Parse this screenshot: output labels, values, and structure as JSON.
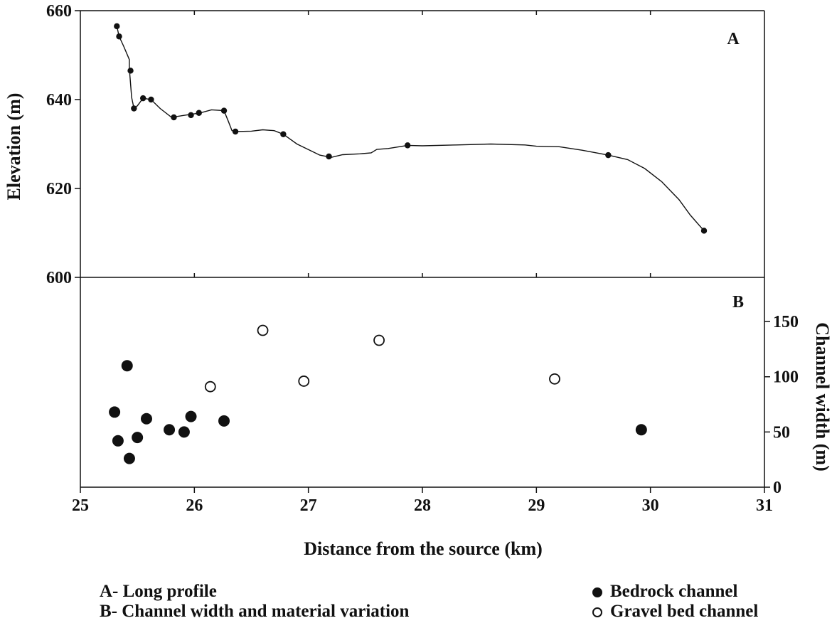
{
  "chart_data": [
    {
      "type": "line",
      "panel_label": "A",
      "ylabel": "Elevation (m)",
      "xlim": [
        25,
        31
      ],
      "ylim": [
        600,
        660
      ],
      "yticks": [
        600,
        620,
        640,
        660
      ],
      "series": [
        {
          "line_x": [
            25.32,
            25.34,
            25.38,
            25.43,
            25.43,
            25.45,
            25.47,
            25.5,
            25.55,
            25.62,
            25.7,
            25.8,
            25.92,
            26.05,
            26.15,
            26.26,
            26.3,
            26.33,
            26.36,
            26.5,
            26.6,
            26.7,
            26.78,
            26.9,
            27.02,
            27.1,
            27.2,
            27.3,
            27.45,
            27.55,
            27.6,
            27.7,
            27.87,
            28.0,
            28.3,
            28.6,
            28.9,
            29.0,
            29.2,
            29.4,
            29.63,
            29.8,
            29.95,
            30.1,
            30.25,
            30.35,
            30.47
          ],
          "line_y": [
            656.5,
            654.2,
            652.0,
            649.0,
            647.0,
            640.5,
            638.0,
            638.6,
            640.3,
            640.0,
            638.0,
            636.0,
            636.5,
            637.0,
            637.7,
            637.5,
            635.0,
            633.0,
            632.8,
            632.9,
            633.2,
            633.0,
            632.2,
            630.0,
            628.5,
            627.5,
            627.0,
            627.6,
            627.8,
            628.0,
            628.8,
            629.0,
            629.7,
            629.6,
            629.8,
            630.0,
            629.8,
            629.5,
            629.4,
            628.6,
            627.5,
            626.5,
            624.5,
            621.5,
            617.5,
            614.0,
            610.5
          ],
          "points_x": [
            25.32,
            25.34,
            25.44,
            25.47,
            25.55,
            25.62,
            25.82,
            25.97,
            26.04,
            26.26,
            26.36,
            26.78,
            27.18,
            27.87,
            29.63,
            30.47
          ],
          "points_y": [
            656.5,
            654.2,
            646.5,
            638.0,
            640.3,
            640.0,
            636.0,
            636.5,
            637.0,
            637.5,
            632.8,
            632.2,
            627.2,
            629.7,
            627.5,
            610.5
          ]
        }
      ]
    },
    {
      "type": "scatter",
      "panel_label": "B",
      "xlabel": "Distance from the source (km)",
      "ylabel": "Channel width (m)",
      "xlim": [
        25,
        31
      ],
      "ylim": [
        0,
        190
      ],
      "xticks": [
        25,
        26,
        27,
        28,
        29,
        30,
        31
      ],
      "yticks": [
        0,
        50,
        100,
        150
      ],
      "series": [
        {
          "name": "Bedrock channel",
          "marker": "filled",
          "x": [
            25.3,
            25.33,
            25.41,
            25.43,
            25.5,
            25.58,
            25.78,
            25.91,
            25.97,
            26.26,
            29.92
          ],
          "y": [
            68,
            42,
            110,
            26,
            45,
            62,
            52,
            50,
            64,
            60,
            52
          ]
        },
        {
          "name": "Gravel bed channel",
          "marker": "open",
          "x": [
            26.14,
            26.6,
            26.96,
            27.62,
            29.16
          ],
          "y": [
            91,
            142,
            96,
            133,
            98
          ]
        }
      ]
    }
  ],
  "legend": {
    "caption_a": "A- Long profile",
    "caption_b": "B- Channel width and material variation",
    "bedrock": "Bedrock channel",
    "gravel": "Gravel bed channel"
  },
  "colors": {
    "ink": "#111111",
    "background": "#ffffff"
  }
}
